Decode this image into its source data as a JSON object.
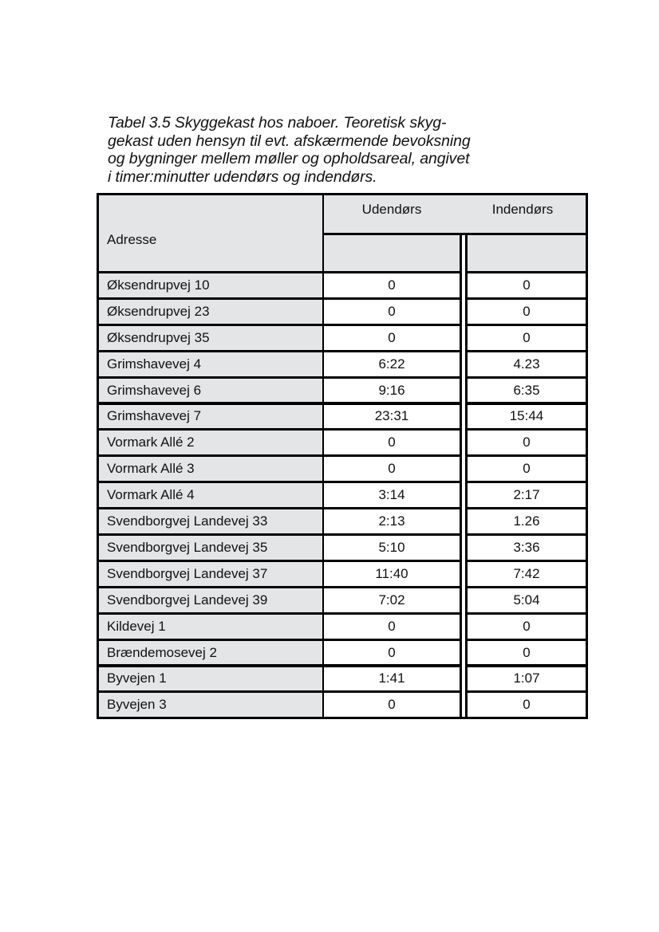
{
  "caption": [
    "Tabel 3.5 Skyggekast hos naboer. Teoretisk skyg-",
    "gekast uden hensyn til evt. afskærmende bevoksning",
    "og bygninger mellem møller og opholdsareal, angivet",
    "i timer:minutter udendørs og indendørs."
  ],
  "table": {
    "headers": {
      "address": "Adresse",
      "outdoor": "Udendørs",
      "indoor": "Indendørs"
    },
    "rows": [
      {
        "address": "Øksendrupvej 10",
        "outdoor": "0",
        "indoor": "0"
      },
      {
        "address": "Øksendrupvej 23",
        "outdoor": "0",
        "indoor": "0"
      },
      {
        "address": "Øksendrupvej 35",
        "outdoor": "0",
        "indoor": "0"
      },
      {
        "address": "Grimshavevej 4",
        "outdoor": "6:22",
        "indoor": "4.23"
      },
      {
        "address": "Grimshavevej 6",
        "outdoor": "9:16",
        "indoor": "6:35"
      },
      {
        "address": "Grimshavevej 7",
        "outdoor": "23:31",
        "indoor": "15:44"
      },
      {
        "address": "Vormark Allé 2",
        "outdoor": "0",
        "indoor": "0"
      },
      {
        "address": "Vormark Allé 3",
        "outdoor": "0",
        "indoor": "0"
      },
      {
        "address": "Vormark Allé 4",
        "outdoor": "3:14",
        "indoor": "2:17"
      },
      {
        "address": "Svendborgvej Landevej 33",
        "outdoor": "2:13",
        "indoor": "1.26"
      },
      {
        "address": "Svendborgvej Landevej 35",
        "outdoor": "5:10",
        "indoor": "3:36"
      },
      {
        "address": "Svendborgvej Landevej 37",
        "outdoor": "11:40",
        "indoor": "7:42"
      },
      {
        "address": "Svendborgvej Landevej 39",
        "outdoor": "7:02",
        "indoor": "5:04"
      },
      {
        "address": "Kildevej 1",
        "outdoor": "0",
        "indoor": "0"
      },
      {
        "address": "Brændemosevej 2",
        "outdoor": "0",
        "indoor": "0"
      },
      {
        "address": "Byvejen 1",
        "outdoor": "1:41",
        "indoor": "1:07"
      },
      {
        "address": "Byvejen 3",
        "outdoor": "0",
        "indoor": "0"
      }
    ]
  }
}
